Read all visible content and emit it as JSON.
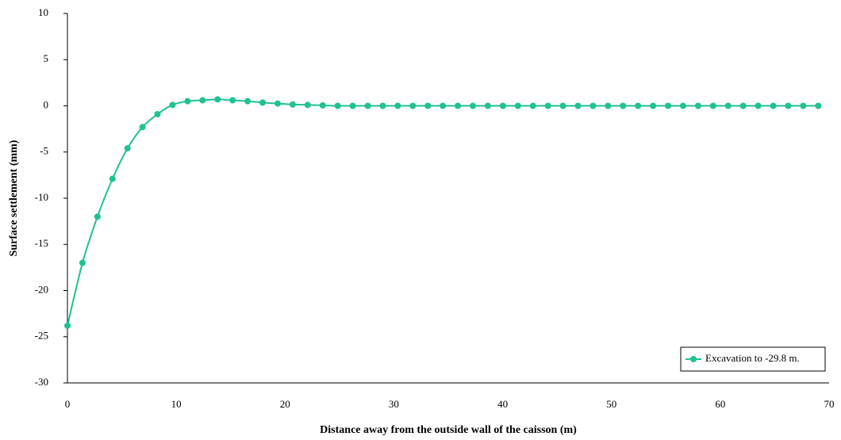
{
  "chart_data": {
    "type": "line",
    "xlabel": "Distance away from the outside wall of the caisson (m)",
    "ylabel": "Surface settlement (mm)",
    "xlim": [
      0,
      70
    ],
    "xticks": [
      0,
      10,
      20,
      30,
      40,
      50,
      60,
      70
    ],
    "ylim": [
      -30,
      10
    ],
    "yticks": [
      -30,
      -25,
      -20,
      -15,
      -10,
      -5,
      0,
      5,
      10
    ],
    "legend": "lower right",
    "x": [
      0,
      1.38,
      2.76,
      4.14,
      5.52,
      6.9,
      8.28,
      9.66,
      11.04,
      12.42,
      13.8,
      15.18,
      16.56,
      17.94,
      19.32,
      20.7,
      22.08,
      23.46,
      24.84,
      26.22,
      27.6,
      28.98,
      30.36,
      31.74,
      33.12,
      34.5,
      35.88,
      37.26,
      38.64,
      40.02,
      41.4,
      42.78,
      44.16,
      45.54,
      46.92,
      48.3,
      49.68,
      51.06,
      52.44,
      53.82,
      55.2,
      56.58,
      57.96,
      59.34,
      60.72,
      62.1,
      63.48,
      64.86,
      66.24,
      67.62,
      69.0
    ],
    "series": [
      {
        "name": "Excavation to -29.8 m.",
        "color": "#20c193",
        "values": [
          -23.8,
          -17.0,
          -12.0,
          -7.9,
          -4.6,
          -2.3,
          -0.9,
          0.1,
          0.5,
          0.6,
          0.7,
          0.6,
          0.5,
          0.35,
          0.25,
          0.15,
          0.1,
          0.05,
          0,
          0,
          0,
          0,
          0,
          0,
          0,
          0,
          0,
          0,
          0,
          0,
          0,
          0,
          0,
          0,
          0,
          0,
          0,
          0,
          0,
          0,
          0,
          0,
          0,
          0,
          0,
          0,
          0,
          0,
          0,
          0,
          0
        ]
      }
    ]
  }
}
